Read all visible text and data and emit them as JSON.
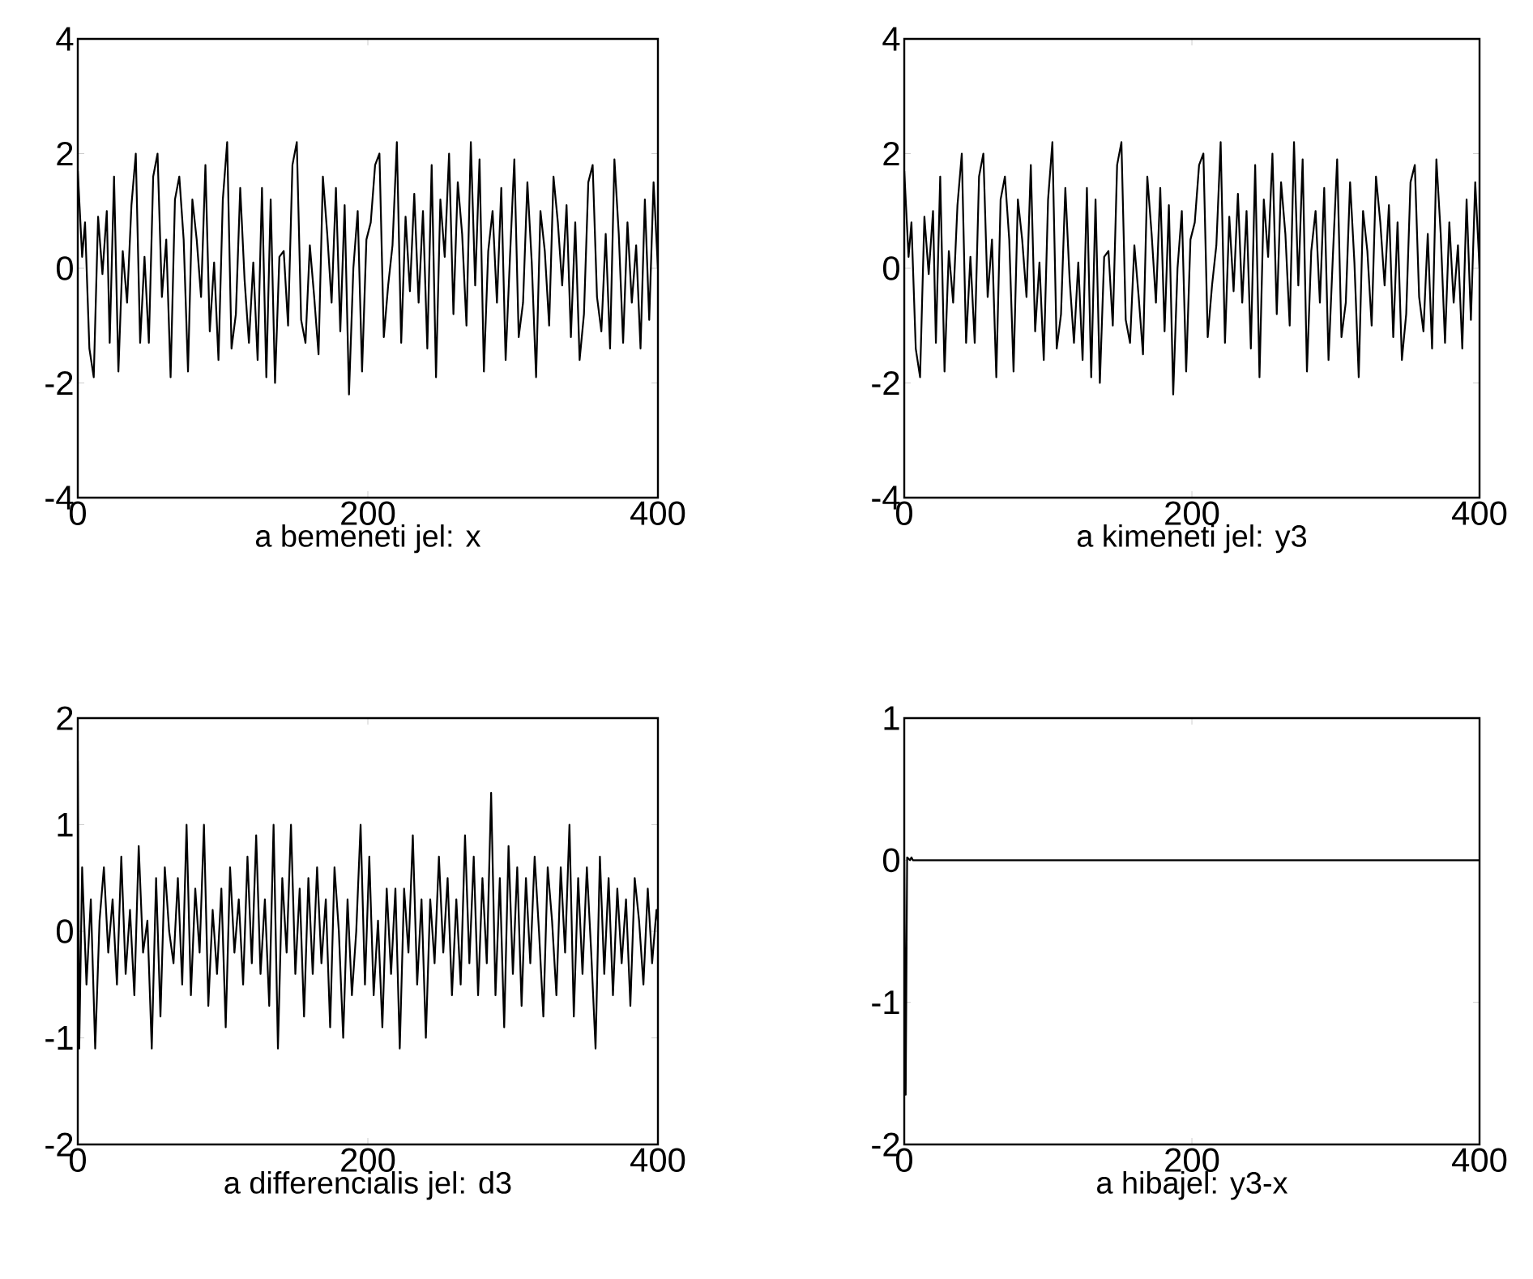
{
  "chart_data": [
    {
      "type": "line",
      "xlabel": "a bemeneti jel: x",
      "xlim": [
        0,
        400
      ],
      "ylim": [
        -4,
        4
      ],
      "xticks": [
        0,
        200,
        400
      ],
      "yticks": [
        -4,
        -2,
        0,
        2,
        4
      ],
      "grid": false,
      "x": [
        0,
        3,
        5,
        8,
        11,
        14,
        17,
        20,
        22,
        25,
        28,
        31,
        34,
        37,
        40,
        43,
        46,
        49,
        52,
        55,
        58,
        61,
        64,
        67,
        70,
        73,
        76,
        79,
        82,
        85,
        88,
        91,
        94,
        97,
        100,
        103,
        106,
        109,
        112,
        115,
        118,
        121,
        124,
        127,
        130,
        133,
        136,
        139,
        142,
        145,
        148,
        151,
        154,
        157,
        160,
        163,
        166,
        169,
        172,
        175,
        178,
        181,
        184,
        187,
        190,
        193,
        196,
        199,
        202,
        205,
        208,
        211,
        214,
        217,
        220,
        223,
        226,
        229,
        232,
        235,
        238,
        241,
        244,
        247,
        250,
        253,
        256,
        259,
        262,
        265,
        268,
        271,
        274,
        277,
        280,
        283,
        286,
        289,
        292,
        295,
        298,
        301,
        304,
        307,
        310,
        313,
        316,
        319,
        322,
        325,
        328,
        331,
        334,
        337,
        340,
        343,
        346,
        349,
        352,
        355,
        358,
        361,
        364,
        367,
        370,
        373,
        376,
        379,
        382,
        385,
        388,
        391,
        394,
        397,
        400
      ],
      "series": [
        {
          "color": "#000000",
          "values": [
            1.7,
            0.2,
            0.8,
            -1.4,
            -1.9,
            0.9,
            -0.1,
            1.0,
            -1.3,
            1.6,
            -1.8,
            0.3,
            -0.6,
            1.1,
            2.0,
            -1.3,
            0.2,
            -1.3,
            1.6,
            2.0,
            -0.5,
            0.5,
            -1.9,
            1.2,
            1.6,
            0.5,
            -1.8,
            1.2,
            0.5,
            -0.5,
            1.8,
            -1.1,
            0.1,
            -1.6,
            1.2,
            2.2,
            -1.4,
            -0.8,
            1.4,
            -0.2,
            -1.3,
            0.1,
            -1.6,
            1.4,
            -1.9,
            1.2,
            -2.0,
            0.2,
            0.3,
            -1.0,
            1.8,
            2.2,
            -0.9,
            -1.3,
            0.4,
            -0.5,
            -1.5,
            1.6,
            0.6,
            -0.6,
            1.4,
            -1.1,
            1.1,
            -2.2,
            0.0,
            1.0,
            -1.8,
            0.5,
            0.8,
            1.8,
            2.0,
            -1.2,
            -0.3,
            0.4,
            2.2,
            -1.3,
            0.9,
            -0.4,
            1.3,
            -0.6,
            1.0,
            -1.4,
            1.8,
            -1.9,
            1.2,
            0.2,
            2.0,
            -0.8,
            1.5,
            0.6,
            -1.0,
            2.2,
            -0.3,
            1.9,
            -1.8,
            0.3,
            1.0,
            -0.6,
            1.4,
            -1.6,
            0.2,
            1.9,
            -1.2,
            -0.6,
            1.5,
            0.1,
            -1.9,
            1.0,
            0.3,
            -1.0,
            1.6,
            0.8,
            -0.3,
            1.1,
            -1.2,
            0.8,
            -1.6,
            -0.8,
            1.5,
            1.8,
            -0.5,
            -1.1,
            0.6,
            -1.4,
            1.9,
            0.6,
            -1.3,
            0.8,
            -0.6,
            0.4,
            -1.4,
            1.2,
            -0.9,
            1.5,
            0.0
          ]
        }
      ]
    },
    {
      "type": "line",
      "xlabel": "a kimeneti jel: y3",
      "xlim": [
        0,
        400
      ],
      "ylim": [
        -4,
        4
      ],
      "xticks": [
        0,
        200,
        400
      ],
      "yticks": [
        -4,
        -2,
        0,
        2,
        4
      ],
      "grid": false,
      "x": [
        0,
        3,
        5,
        8,
        11,
        14,
        17,
        20,
        22,
        25,
        28,
        31,
        34,
        37,
        40,
        43,
        46,
        49,
        52,
        55,
        58,
        61,
        64,
        67,
        70,
        73,
        76,
        79,
        82,
        85,
        88,
        91,
        94,
        97,
        100,
        103,
        106,
        109,
        112,
        115,
        118,
        121,
        124,
        127,
        130,
        133,
        136,
        139,
        142,
        145,
        148,
        151,
        154,
        157,
        160,
        163,
        166,
        169,
        172,
        175,
        178,
        181,
        184,
        187,
        190,
        193,
        196,
        199,
        202,
        205,
        208,
        211,
        214,
        217,
        220,
        223,
        226,
        229,
        232,
        235,
        238,
        241,
        244,
        247,
        250,
        253,
        256,
        259,
        262,
        265,
        268,
        271,
        274,
        277,
        280,
        283,
        286,
        289,
        292,
        295,
        298,
        301,
        304,
        307,
        310,
        313,
        316,
        319,
        322,
        325,
        328,
        331,
        334,
        337,
        340,
        343,
        346,
        349,
        352,
        355,
        358,
        361,
        364,
        367,
        370,
        373,
        376,
        379,
        382,
        385,
        388,
        391,
        394,
        397,
        400
      ],
      "series": [
        {
          "color": "#000000",
          "values": [
            1.7,
            0.2,
            0.8,
            -1.4,
            -1.9,
            0.9,
            -0.1,
            1.0,
            -1.3,
            1.6,
            -1.8,
            0.3,
            -0.6,
            1.1,
            2.0,
            -1.3,
            0.2,
            -1.3,
            1.6,
            2.0,
            -0.5,
            0.5,
            -1.9,
            1.2,
            1.6,
            0.5,
            -1.8,
            1.2,
            0.5,
            -0.5,
            1.8,
            -1.1,
            0.1,
            -1.6,
            1.2,
            2.2,
            -1.4,
            -0.8,
            1.4,
            -0.2,
            -1.3,
            0.1,
            -1.6,
            1.4,
            -1.9,
            1.2,
            -2.0,
            0.2,
            0.3,
            -1.0,
            1.8,
            2.2,
            -0.9,
            -1.3,
            0.4,
            -0.5,
            -1.5,
            1.6,
            0.6,
            -0.6,
            1.4,
            -1.1,
            1.1,
            -2.2,
            0.0,
            1.0,
            -1.8,
            0.5,
            0.8,
            1.8,
            2.0,
            -1.2,
            -0.3,
            0.4,
            2.2,
            -1.3,
            0.9,
            -0.4,
            1.3,
            -0.6,
            1.0,
            -1.4,
            1.8,
            -1.9,
            1.2,
            0.2,
            2.0,
            -0.8,
            1.5,
            0.6,
            -1.0,
            2.2,
            -0.3,
            1.9,
            -1.8,
            0.3,
            1.0,
            -0.6,
            1.4,
            -1.6,
            0.2,
            1.9,
            -1.2,
            -0.6,
            1.5,
            0.1,
            -1.9,
            1.0,
            0.3,
            -1.0,
            1.6,
            0.8,
            -0.3,
            1.1,
            -1.2,
            0.8,
            -1.6,
            -0.8,
            1.5,
            1.8,
            -0.5,
            -1.1,
            0.6,
            -1.4,
            1.9,
            0.6,
            -1.3,
            0.8,
            -0.6,
            0.4,
            -1.4,
            1.2,
            -0.9,
            1.5,
            0.0
          ]
        }
      ]
    },
    {
      "type": "line",
      "xlabel": "a differencialis jel: d3",
      "xlim": [
        0,
        400
      ],
      "ylim": [
        -2,
        2
      ],
      "xticks": [
        0,
        200,
        400
      ],
      "yticks": [
        -2,
        -1,
        0,
        1,
        2
      ],
      "grid": false,
      "x": [
        0,
        1,
        3,
        6,
        9,
        12,
        15,
        18,
        21,
        24,
        27,
        30,
        33,
        36,
        39,
        42,
        45,
        48,
        51,
        54,
        57,
        60,
        63,
        66,
        69,
        72,
        75,
        78,
        81,
        84,
        87,
        90,
        93,
        96,
        99,
        102,
        105,
        108,
        111,
        114,
        117,
        120,
        123,
        126,
        129,
        132,
        135,
        138,
        141,
        144,
        147,
        150,
        153,
        156,
        159,
        162,
        165,
        168,
        171,
        174,
        177,
        180,
        183,
        186,
        189,
        192,
        195,
        198,
        201,
        204,
        207,
        210,
        213,
        216,
        219,
        222,
        225,
        228,
        231,
        234,
        237,
        240,
        243,
        246,
        249,
        252,
        255,
        258,
        261,
        264,
        267,
        270,
        273,
        276,
        279,
        282,
        285,
        288,
        291,
        294,
        297,
        300,
        303,
        306,
        309,
        312,
        315,
        318,
        321,
        324,
        327,
        330,
        333,
        336,
        339,
        342,
        345,
        348,
        351,
        354,
        357,
        360,
        363,
        366,
        369,
        372,
        375,
        378,
        381,
        384,
        387,
        390,
        393,
        396,
        399,
        400
      ],
      "series": [
        {
          "color": "#000000",
          "values": [
            1.6,
            -1.1,
            0.6,
            -0.5,
            0.3,
            -1.1,
            0.1,
            0.6,
            -0.2,
            0.3,
            -0.5,
            0.7,
            -0.4,
            0.2,
            -0.6,
            0.8,
            -0.2,
            0.1,
            -1.1,
            0.5,
            -0.8,
            0.6,
            0.0,
            -0.3,
            0.5,
            -0.5,
            1.0,
            -0.6,
            0.4,
            -0.2,
            1.0,
            -0.7,
            0.2,
            -0.4,
            0.4,
            -0.9,
            0.6,
            -0.2,
            0.3,
            -0.5,
            0.7,
            -0.3,
            0.9,
            -0.4,
            0.3,
            -0.7,
            1.0,
            -1.1,
            0.5,
            -0.2,
            1.0,
            -0.4,
            0.4,
            -0.8,
            0.5,
            -0.4,
            0.6,
            -0.3,
            0.3,
            -0.9,
            0.6,
            0.0,
            -1.0,
            0.3,
            -0.6,
            0.0,
            1.0,
            -0.5,
            0.7,
            -0.6,
            0.1,
            -0.9,
            0.4,
            -0.4,
            0.4,
            -1.1,
            0.4,
            -0.2,
            0.9,
            -0.5,
            0.3,
            -1.0,
            0.3,
            -0.3,
            0.7,
            -0.2,
            0.5,
            -0.6,
            0.3,
            -0.5,
            0.9,
            -0.3,
            0.7,
            -0.6,
            0.5,
            -0.3,
            1.3,
            -0.6,
            0.5,
            -0.9,
            0.8,
            -0.4,
            0.6,
            -0.7,
            0.5,
            -0.3,
            0.7,
            0.0,
            -0.8,
            0.6,
            0.1,
            -0.6,
            0.6,
            -0.2,
            1.0,
            -0.8,
            0.5,
            -0.4,
            0.6,
            -0.2,
            -1.1,
            0.7,
            -0.4,
            0.5,
            -0.6,
            0.4,
            -0.3,
            0.3,
            -0.7,
            0.5,
            0.1,
            -0.5,
            0.4,
            -0.3,
            0.2,
            0.1
          ]
        }
      ]
    },
    {
      "type": "line",
      "xlabel": "a hibajel: y3-x",
      "xlim": [
        0,
        400
      ],
      "ylim": [
        -2,
        1
      ],
      "xticks": [
        0,
        200,
        400
      ],
      "yticks": [
        -2,
        -1,
        0,
        1
      ],
      "grid": false,
      "x": [
        0,
        1,
        2,
        4,
        5,
        6,
        400
      ],
      "series": [
        {
          "color": "#000000",
          "values": [
            0.0,
            -1.65,
            0.02,
            0.0,
            0.02,
            0.0,
            0.0
          ]
        }
      ]
    }
  ]
}
